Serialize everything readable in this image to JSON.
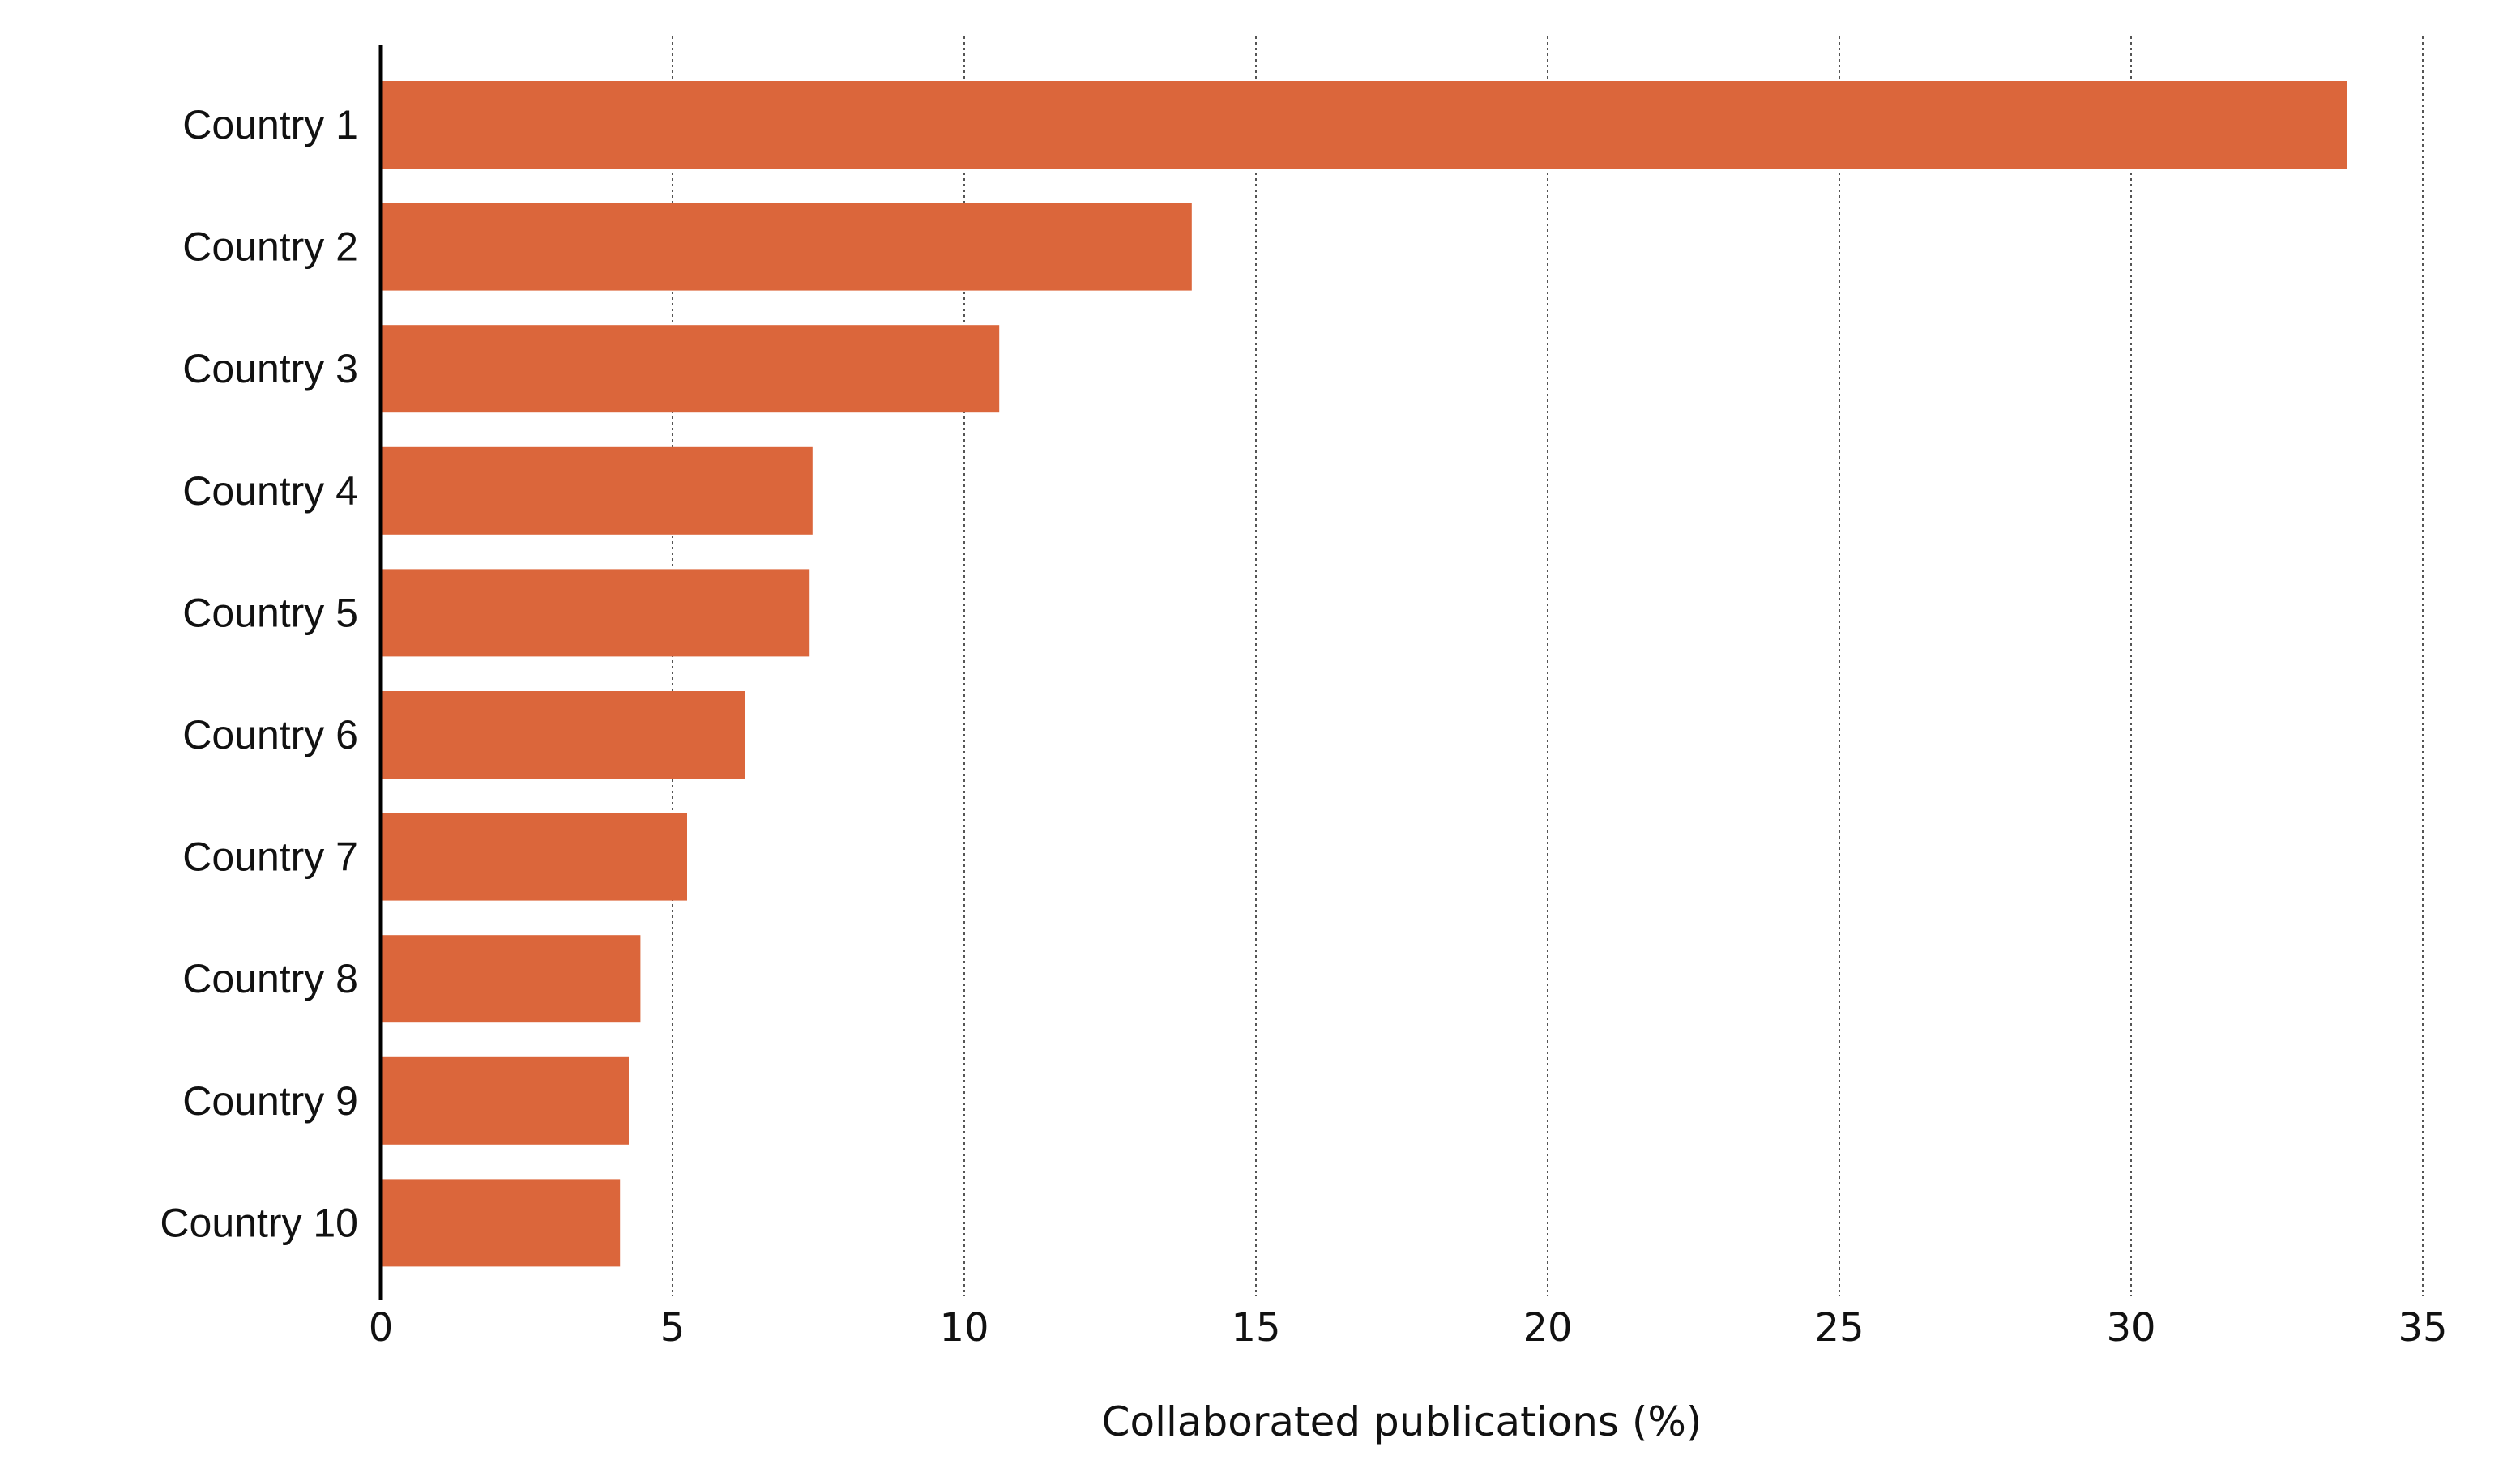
{
  "chart_data": {
    "type": "bar",
    "orientation": "horizontal",
    "categories": [
      "Country 1",
      "Country 2",
      "Country 3",
      "Country 4",
      "Country 5",
      "Country 6",
      "Country 7",
      "Country 8",
      "Country 9",
      "Country 10"
    ],
    "values": [
      33.7,
      13.9,
      10.6,
      7.4,
      7.35,
      6.25,
      5.25,
      4.45,
      4.25,
      4.1
    ],
    "xlabel": "Collaborated publications (%)",
    "ylabel": "",
    "xlim": [
      0,
      35
    ],
    "xticks": [
      "0",
      "5",
      "10",
      "15",
      "20",
      "25",
      "30",
      "35"
    ],
    "grid": "vertical dashed",
    "bar_color": "#db663b"
  }
}
